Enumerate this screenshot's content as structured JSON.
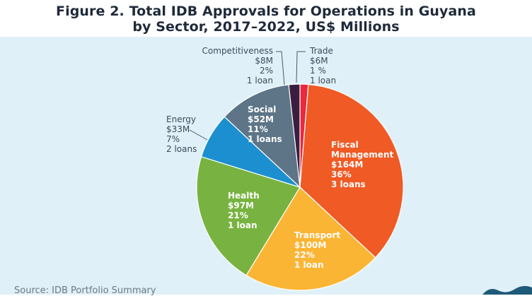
{
  "figure": {
    "title_line1": "Figure 2. Total IDB Approvals for Operations in Guyana",
    "title_line2": "by Sector, 2017–2022, US$ Millions",
    "source": "Source: IDB Portfolio Summary"
  },
  "chart_data": {
    "type": "pie",
    "title": "Figure 2. Total IDB Approvals for Operations in Guyana by Sector, 2017–2022, US$ Millions",
    "slices": [
      {
        "sector": "Trade",
        "amount": "$6M",
        "value": 6,
        "percent": "1 %",
        "loans": "1 loan",
        "color": "#e8293e",
        "label_style": "outside"
      },
      {
        "sector": "Fiscal Management",
        "line1": "Fiscal",
        "line2": "Management",
        "amount": "$164M",
        "value": 164,
        "percent": "36%",
        "loans": "3 loans",
        "color": "#f05a24",
        "label_style": "inside"
      },
      {
        "sector": "Transport",
        "amount": "$100M",
        "value": 100,
        "percent": "22%",
        "loans": "1 loan",
        "color": "#fbb534",
        "label_style": "inside"
      },
      {
        "sector": "Health",
        "amount": "$97M",
        "value": 97,
        "percent": "21%",
        "loans": "1 loan",
        "color": "#78b341",
        "label_style": "inside"
      },
      {
        "sector": "Energy",
        "amount": "$33M",
        "value": 33,
        "percent": "7%",
        "loans": "2 loans",
        "color": "#1b8fcf",
        "label_style": "outside"
      },
      {
        "sector": "Social",
        "amount": "$52M",
        "value": 52,
        "percent": "11%",
        "loans": "1 loans",
        "color": "#5d7587",
        "label_style": "inside"
      },
      {
        "sector": "Competitiveness",
        "amount": "$8M",
        "value": 8,
        "percent": "2%",
        "loans": "1 loan",
        "color": "#3a1e40",
        "label_style": "outside"
      }
    ]
  },
  "colors": {
    "title_text": "#1f2a3a",
    "panel_background": "#dff0f8",
    "inside_label_text": "#ffffff",
    "outside_label_text": "#3d4a5a",
    "leader_line": "#4a5a6a"
  }
}
